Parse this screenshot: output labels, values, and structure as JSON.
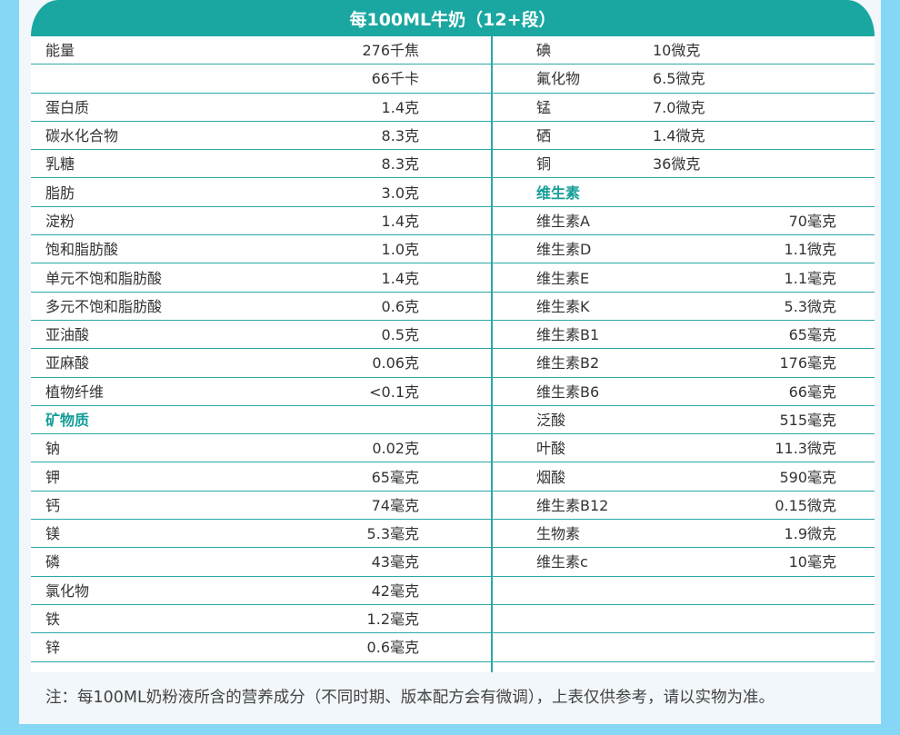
{
  "header": {
    "title": "每100ML牛奶（12+段）"
  },
  "left": [
    {
      "name": "能量",
      "value": "276千焦"
    },
    {
      "name": "",
      "value": "66千卡"
    },
    {
      "name": "蛋白质",
      "value": "1.4克"
    },
    {
      "name": "碳水化合物",
      "value": "8.3克"
    },
    {
      "name": "乳糖",
      "value": "8.3克"
    },
    {
      "name": "脂肪",
      "value": "3.0克"
    },
    {
      "name": "淀粉",
      "value": "1.4克"
    },
    {
      "name": "饱和脂肪酸",
      "value": "1.0克"
    },
    {
      "name": "单元不饱和脂肪酸",
      "value": "1.4克"
    },
    {
      "name": "多元不饱和脂肪酸",
      "value": "0.6克"
    },
    {
      "name": "亚油酸",
      "value": "0.5克"
    },
    {
      "name": "亚麻酸",
      "value": "0.06克"
    },
    {
      "name": "植物纤维",
      "value": "<0.1克"
    },
    {
      "name": "矿物质",
      "value": "",
      "section": true
    },
    {
      "name": "钠",
      "value": "0.02克"
    },
    {
      "name": "钾",
      "value": "65毫克"
    },
    {
      "name": "钙",
      "value": "74毫克"
    },
    {
      "name": "镁",
      "value": "5.3毫克"
    },
    {
      "name": "磷",
      "value": "43毫克"
    },
    {
      "name": "氯化物",
      "value": "42毫克"
    },
    {
      "name": "铁",
      "value": "1.2毫克"
    },
    {
      "name": "锌",
      "value": "0.6毫克"
    }
  ],
  "right": [
    {
      "name": "碘",
      "value": "10微克",
      "near": true
    },
    {
      "name": "氟化物",
      "value": "6.5微克",
      "near": true
    },
    {
      "name": "锰",
      "value": "7.0微克",
      "near": true
    },
    {
      "name": "硒",
      "value": "1.4微克",
      "near": true
    },
    {
      "name": "铜",
      "value": "36微克",
      "near": true
    },
    {
      "name": "维生素",
      "value": "",
      "section": true
    },
    {
      "name": "维生素A",
      "value": "70毫克"
    },
    {
      "name": "维生素D",
      "value": "1.1微克"
    },
    {
      "name": "维生素E",
      "value": "1.1毫克"
    },
    {
      "name": "维生素K",
      "value": "5.3微克"
    },
    {
      "name": "维生素B1",
      "value": "65毫克"
    },
    {
      "name": "维生素B2",
      "value": "176毫克"
    },
    {
      "name": "维生素B6",
      "value": "66毫克"
    },
    {
      "name": "泛酸",
      "value": "515毫克"
    },
    {
      "name": "叶酸",
      "value": "11.3微克"
    },
    {
      "name": "烟酸",
      "value": "590毫克"
    },
    {
      "name": "维生素B12",
      "value": "0.15微克"
    },
    {
      "name": "生物素",
      "value": "1.9微克"
    },
    {
      "name": "维生素c",
      "value": "10毫克"
    },
    {
      "name": "",
      "value": ""
    },
    {
      "name": "",
      "value": ""
    },
    {
      "name": "",
      "value": ""
    }
  ],
  "footnote": "注：每100ML奶粉液所含的营养成分（不同时期、版本配方会有微调），上表仅供参考，请以实物为准。"
}
